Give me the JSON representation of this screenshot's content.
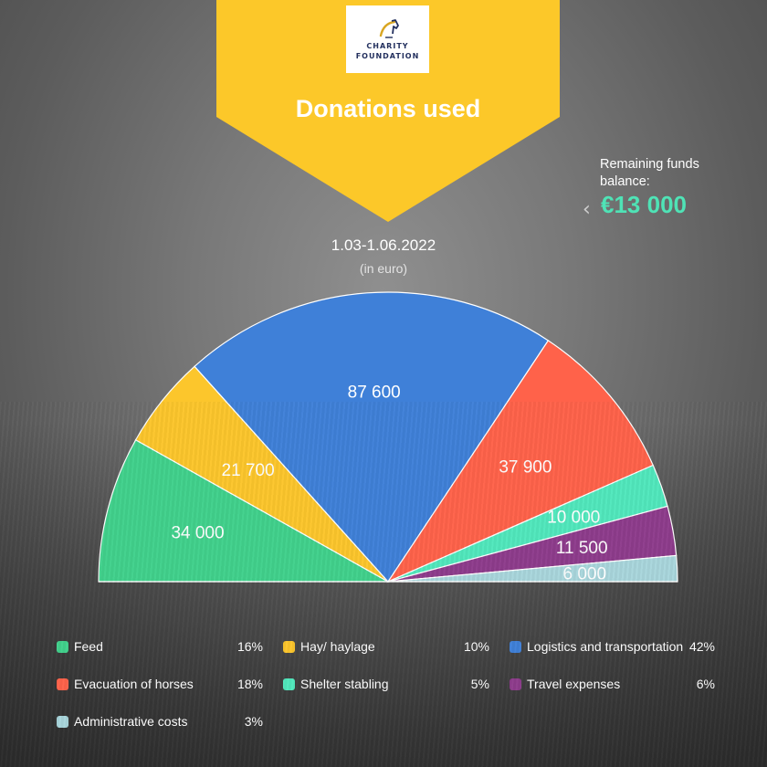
{
  "logo": {
    "line1": "CHARITY",
    "line2": "FOUNDATION",
    "icon": "horse-head-icon"
  },
  "banner": {
    "title": "Donations used",
    "color": "#fcc829"
  },
  "remaining": {
    "label": "Remaining funds balance:",
    "value": "€13 000",
    "color": "#4fe3b6"
  },
  "period": {
    "date_range": "1.03-1.06.2022",
    "unit_note": "(in euro)"
  },
  "chart_data": {
    "type": "pie",
    "variant": "semicircle",
    "categories": [
      "Feed",
      "Hay/ haylage",
      "Logistics and transportation",
      "Evacuation of horses",
      "Shelter stabling",
      "Travel expenses",
      "Administrative costs"
    ],
    "values": [
      34000,
      21700,
      87600,
      37900,
      10000,
      11500,
      6000
    ],
    "value_labels": [
      "34 000",
      "21 700",
      "87 600",
      "37 900",
      "10 000",
      "11 500",
      "6 000"
    ],
    "percentages": [
      "16%",
      "10%",
      "42%",
      "18%",
      "5%",
      "6%",
      "3%"
    ],
    "colors": [
      "#41d18c",
      "#fcc62c",
      "#3f80d8",
      "#ff624a",
      "#51e8bd",
      "#8e3c8c",
      "#a9d6dc"
    ],
    "legend_position": "bottom"
  }
}
